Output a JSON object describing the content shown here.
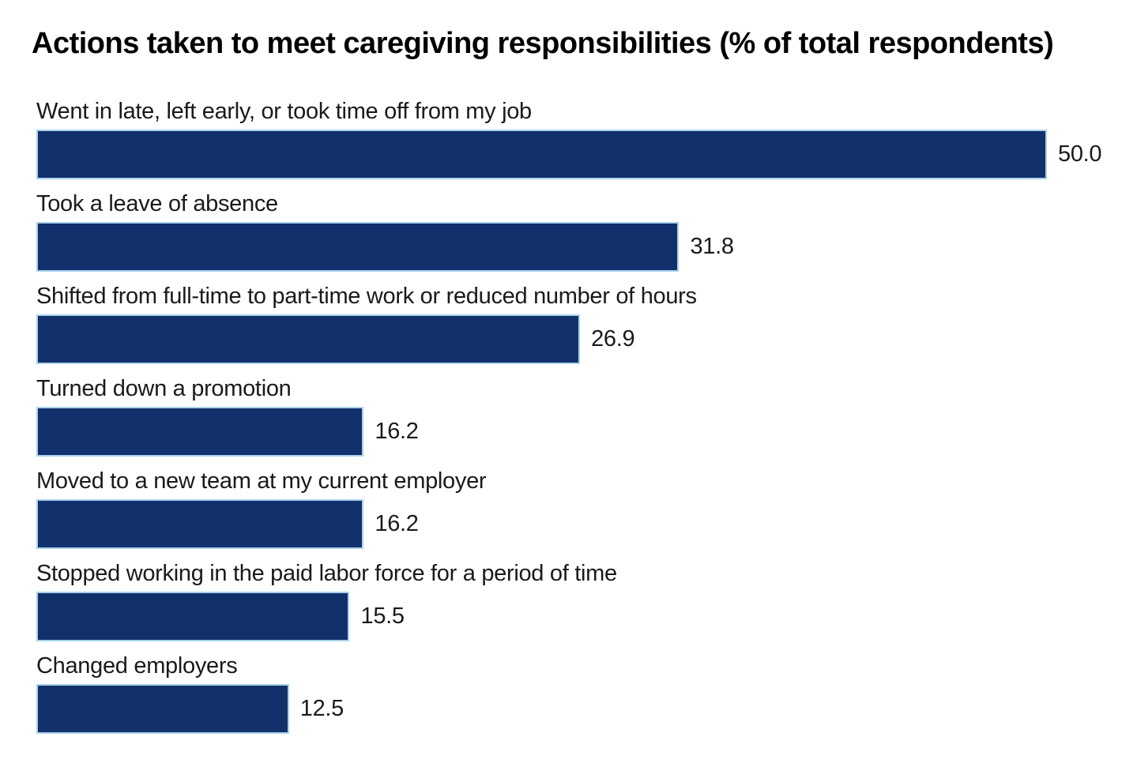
{
  "page": {
    "background": "#ffffff"
  },
  "chart_data": {
    "type": "bar",
    "orientation": "horizontal",
    "title": "Actions taken to meet caregiving responsibilities (% of total respondents)",
    "categories": [
      "Went in late, left early, or took time off from my job",
      "Took a leave of absence",
      "Shifted from full-time to part-time work or reduced number of hours",
      "Turned down a promotion",
      "Moved to a new team at my current employer",
      "Stopped working in the paid labor force for a period of time",
      "Changed employers"
    ],
    "values": [
      50.0,
      31.8,
      26.9,
      16.2,
      16.2,
      15.5,
      12.5
    ],
    "value_labels": [
      "50.0",
      "31.8",
      "26.9",
      "16.2",
      "16.2",
      "15.5",
      "12.5"
    ],
    "xlabel": "",
    "ylabel": "",
    "xlim": [
      0,
      50
    ],
    "grid": false,
    "legend": false,
    "value_label_position": "right-of-bar",
    "category_label_position": "above-bar",
    "colors": {
      "bar_fill": "#12306b",
      "bar_border": "#a9d3ea",
      "label_text": "#1a1a1a",
      "title_text": "#000000"
    }
  }
}
